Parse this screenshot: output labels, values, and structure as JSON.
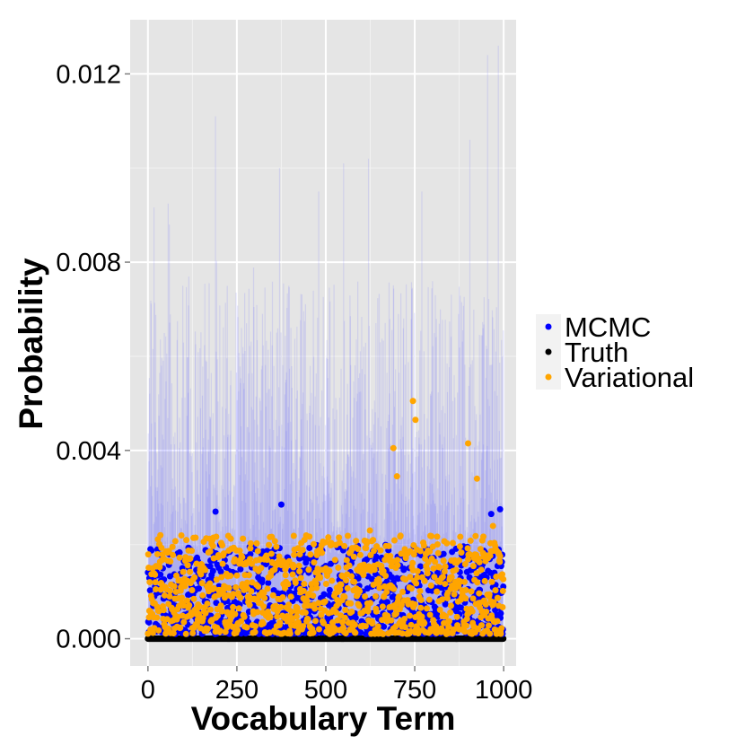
{
  "chart_data": {
    "type": "scatter",
    "xlabel": "Vocabulary Term",
    "ylabel": "Probability",
    "xlim": [
      -50,
      1035
    ],
    "ylim": [
      -0.00058,
      0.01315
    ],
    "x_ticks": [
      0,
      250,
      500,
      750,
      1000
    ],
    "x_tick_labels": [
      "0",
      "250",
      "500",
      "750",
      "1000"
    ],
    "y_ticks": [
      0.0,
      0.004,
      0.008,
      0.012
    ],
    "y_tick_labels": [
      "0.000",
      "0.004",
      "0.008",
      "0.012"
    ],
    "grid": true,
    "panel_background": "#e5e5e5",
    "legend_position": "right",
    "n_terms": 1000,
    "series": [
      {
        "name": "MCMC",
        "color": "#0000ff",
        "kind": "points"
      },
      {
        "name": "Truth",
        "color": "#000000",
        "kind": "points"
      },
      {
        "name": "Variational",
        "color": "#ffa500",
        "kind": "points"
      }
    ],
    "intervals": {
      "series": "MCMC",
      "color": "#6666ff",
      "kind": "vertical-ranges",
      "typical_upper_range": [
        0.0018,
        0.0075
      ]
    },
    "notable_points": [
      {
        "series": "Variational",
        "x": 745,
        "y": 0.00505
      },
      {
        "series": "Variational",
        "x": 752,
        "y": 0.00465
      },
      {
        "series": "Variational",
        "x": 690,
        "y": 0.00405
      },
      {
        "series": "Variational",
        "x": 900,
        "y": 0.00415
      },
      {
        "series": "Variational",
        "x": 700,
        "y": 0.00345
      },
      {
        "series": "Variational",
        "x": 925,
        "y": 0.0034
      },
      {
        "series": "MCMC",
        "x": 375,
        "y": 0.00285
      },
      {
        "series": "MCMC",
        "x": 190,
        "y": 0.0027
      },
      {
        "series": "MCMC",
        "x": 965,
        "y": 0.00265
      },
      {
        "series": "MCMC",
        "x": 990,
        "y": 0.00275
      }
    ],
    "interval_peaks": [
      {
        "x": 190,
        "y": 0.0111
      },
      {
        "x": 370,
        "y": 0.01
      },
      {
        "x": 620,
        "y": 0.0102
      },
      {
        "x": 550,
        "y": 0.0101
      },
      {
        "x": 955,
        "y": 0.0124
      },
      {
        "x": 985,
        "y": 0.0126
      },
      {
        "x": 905,
        "y": 0.0106
      },
      {
        "x": 60,
        "y": 0.0088
      },
      {
        "x": 480,
        "y": 0.0095
      },
      {
        "x": 770,
        "y": 0.0095
      }
    ]
  }
}
